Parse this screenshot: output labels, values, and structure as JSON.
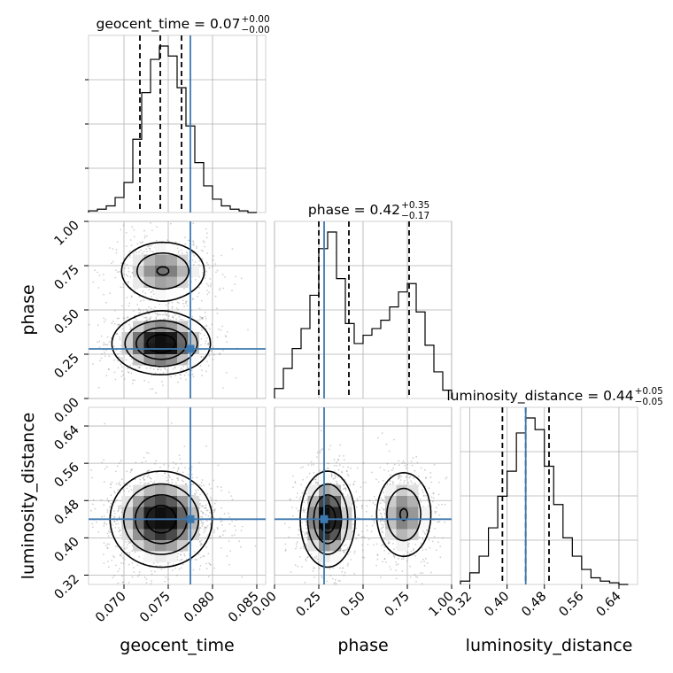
{
  "chart_data": {
    "type": "corner",
    "parameters": [
      "geocent_time",
      "phase",
      "luminosity_distance"
    ],
    "truths": [
      0.0775,
      0.28,
      0.44
    ],
    "truth_color": "#3c78b0",
    "titles": [
      {
        "text": "geocent_time = 0.07",
        "sup": "+0.00",
        "sub": "−0.00"
      },
      {
        "text": "phase = 0.42",
        "sup": "+0.35",
        "sub": "−0.17"
      },
      {
        "text": "luminosity_distance = 0.44",
        "sup": "+0.05",
        "sub": "−0.05"
      }
    ],
    "axes": {
      "geocent_time": {
        "range": [
          0.066,
          0.086
        ],
        "ticks": [
          0.07,
          0.075,
          0.08,
          0.085
        ],
        "tick_labels": [
          "0.070",
          "0.075",
          "0.080",
          "0.085"
        ],
        "label": "geocent_time"
      },
      "phase": {
        "range": [
          0.0,
          1.0
        ],
        "ticks": [
          0.0,
          0.25,
          0.5,
          0.75,
          1.0
        ],
        "tick_labels": [
          "0.00",
          "0.25",
          "0.50",
          "0.75",
          "1.00"
        ],
        "label": "phase"
      },
      "luminosity_distance": {
        "range": [
          0.3,
          0.68
        ],
        "ticks": [
          0.32,
          0.4,
          0.48,
          0.56,
          0.64
        ],
        "tick_labels": [
          "0.32",
          "0.40",
          "0.48",
          "0.56",
          "0.64"
        ],
        "label": "luminosity_distance"
      }
    },
    "histograms": {
      "geocent_time": {
        "edges": [
          0.066,
          0.067,
          0.068,
          0.069,
          0.07,
          0.071,
          0.072,
          0.073,
          0.074,
          0.075,
          0.076,
          0.077,
          0.078,
          0.079,
          0.08,
          0.081,
          0.082,
          0.083,
          0.084,
          0.085
        ],
        "counts": [
          0.01,
          0.02,
          0.04,
          0.09,
          0.18,
          0.44,
          0.72,
          0.92,
          1.0,
          0.94,
          0.75,
          0.52,
          0.3,
          0.16,
          0.08,
          0.04,
          0.02,
          0.01,
          0.0
        ],
        "quantiles": [
          0.0718,
          0.0741,
          0.0765
        ]
      },
      "phase": {
        "edges": [
          0.0,
          0.05,
          0.1,
          0.15,
          0.2,
          0.25,
          0.3,
          0.35,
          0.4,
          0.45,
          0.5,
          0.55,
          0.6,
          0.65,
          0.7,
          0.75,
          0.8,
          0.85,
          0.9,
          0.95,
          1.0
        ],
        "counts": [
          0.06,
          0.18,
          0.3,
          0.42,
          0.62,
          0.9,
          1.0,
          0.72,
          0.45,
          0.33,
          0.38,
          0.42,
          0.47,
          0.55,
          0.64,
          0.69,
          0.52,
          0.32,
          0.16,
          0.05
        ],
        "quantiles": [
          0.25,
          0.42,
          0.76
        ]
      },
      "luminosity_distance": {
        "edges": [
          0.3,
          0.32,
          0.34,
          0.36,
          0.38,
          0.4,
          0.42,
          0.44,
          0.46,
          0.48,
          0.5,
          0.52,
          0.54,
          0.56,
          0.58,
          0.6,
          0.62,
          0.64,
          0.66
        ],
        "counts": [
          0.02,
          0.07,
          0.17,
          0.34,
          0.53,
          0.68,
          0.91,
          1.0,
          0.93,
          0.71,
          0.48,
          0.28,
          0.17,
          0.09,
          0.04,
          0.02,
          0.01,
          0.0
        ],
        "quantiles": [
          0.39,
          0.44,
          0.49
        ]
      }
    },
    "density_2d": [
      {
        "x": "geocent_time",
        "y": "phase",
        "modes": [
          {
            "cx": 0.0742,
            "cy": 0.31,
            "sx": 0.0027,
            "sy": 0.085,
            "w": 1.0
          },
          {
            "cx": 0.0744,
            "cy": 0.72,
            "sx": 0.0026,
            "sy": 0.09,
            "w": 0.6
          }
        ]
      },
      {
        "x": "geocent_time",
        "y": "luminosity_distance",
        "modes": [
          {
            "cx": 0.0742,
            "cy": 0.44,
            "sx": 0.0028,
            "sy": 0.05,
            "w": 1.0
          }
        ]
      },
      {
        "x": "phase",
        "y": "luminosity_distance",
        "modes": [
          {
            "cx": 0.3,
            "cy": 0.44,
            "sx": 0.075,
            "sy": 0.05,
            "w": 1.0
          },
          {
            "cx": 0.73,
            "cy": 0.45,
            "sx": 0.085,
            "sy": 0.05,
            "w": 0.6
          }
        ]
      }
    ],
    "grid": true
  }
}
